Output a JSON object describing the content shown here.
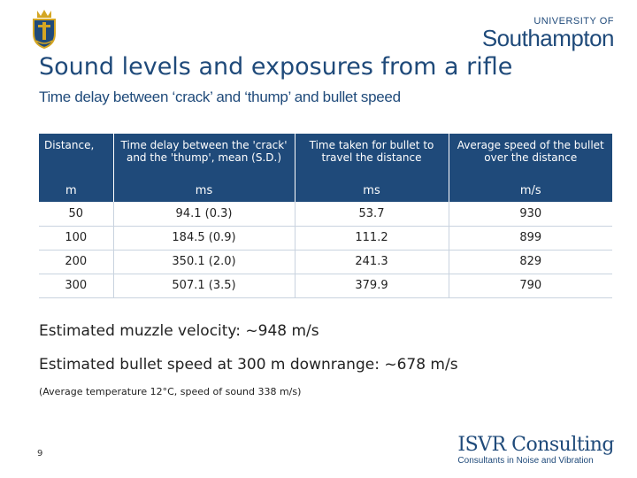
{
  "header": {
    "university_logo_of": "UNIVERSITY OF",
    "university_logo_name": "Southampton"
  },
  "title": "Sound levels and exposures from a rifle",
  "subtitle": "Time delay between ‘crack’ and ‘thump’ and bullet speed",
  "table": {
    "headers": [
      {
        "label": "Distance,",
        "unit": "m"
      },
      {
        "label": "Time delay between the 'crack' and the 'thump', mean (S.D.)",
        "unit": "ms"
      },
      {
        "label": "Time taken for bullet to travel the distance",
        "unit": "ms"
      },
      {
        "label": "Average speed of the bullet over the distance",
        "unit": "m/s"
      }
    ],
    "rows": [
      [
        "50",
        "94.1 (0.3)",
        "53.7",
        "930"
      ],
      [
        "100",
        "184.5 (0.9)",
        "111.2",
        "899"
      ],
      [
        "200",
        "350.1 (2.0)",
        "241.3",
        "829"
      ],
      [
        "300",
        "507.1 (3.5)",
        "379.9",
        "790"
      ]
    ]
  },
  "notes": {
    "muzzle_velocity": "Estimated muzzle velocity: ~948 m/s",
    "downrange_speed": "Estimated bullet speed at 300 m downrange: ~678 m/s",
    "conditions": "(Average temperature 12°C, speed of sound 338 m/s)"
  },
  "footer": {
    "page_number": "9",
    "isvr_name": "ISVR Consulting",
    "isvr_tagline": "Consultants in Noise and Vibration"
  },
  "colors": {
    "brand_blue": "#1f4a7a",
    "crest_gold": "#d4a623"
  }
}
